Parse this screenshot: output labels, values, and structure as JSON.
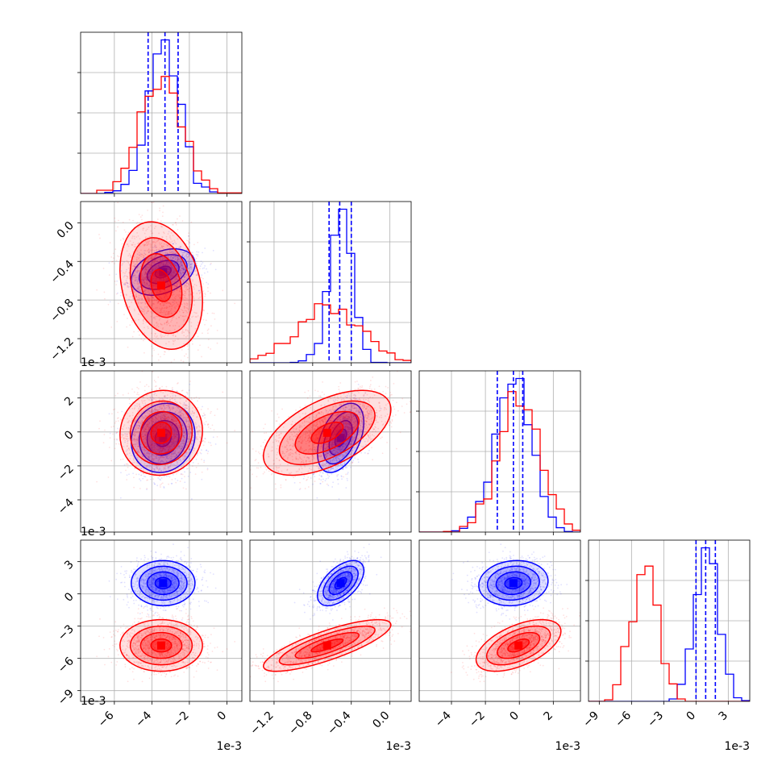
{
  "chart_data": {
    "type": "corner",
    "parameters": [
      {
        "id": "p1",
        "range": [
          -0.0078,
          0.0008
        ],
        "offset_text": "1e-3",
        "ticks": [
          -0.006,
          -0.004,
          -0.002,
          0.0
        ],
        "tick_labels": [
          "−6",
          "−4",
          "−2",
          "0"
        ]
      },
      {
        "id": "p2",
        "range": [
          -0.00145,
          0.00022
        ],
        "offset_text": "1e-3",
        "ticks": [
          -0.0012,
          -0.0008,
          -0.0004,
          0.0
        ],
        "tick_labels": [
          "−1.2",
          "−0.8",
          "−0.4",
          "0.0"
        ]
      },
      {
        "id": "p3",
        "range": [
          -0.0059,
          0.0036
        ],
        "offset_text": "1e-3",
        "ticks": [
          -0.004,
          -0.002,
          0.0,
          0.002
        ],
        "tick_labels": [
          "−4",
          "−2",
          "0",
          "2"
        ]
      },
      {
        "id": "p4",
        "range": [
          -0.01,
          0.005
        ],
        "offset_text": "1e-3",
        "ticks": [
          -0.009,
          -0.006,
          -0.003,
          0.0,
          0.003
        ],
        "tick_labels": [
          "−9",
          "−6",
          "−3",
          "0",
          "3"
        ]
      }
    ],
    "series": [
      {
        "color": "#0000ff",
        "means": [
          -0.0034,
          -0.00051,
          -0.00035,
          0.001
        ],
        "stds": [
          0.00085,
          0.00012,
          0.00102,
          0.00105
        ],
        "quantiles": [
          [
            -0.0042,
            -0.0033,
            -0.0026
          ],
          [
            -0.00063,
            -0.00052,
            -0.0004
          ],
          [
            -0.0013,
            -0.00035,
            0.0002
          ],
          [
            0.0,
            0.0009,
            0.0018
          ]
        ]
      },
      {
        "color": "#ff0000",
        "means": [
          -0.0035,
          -0.00065,
          -5e-05,
          -0.0048
        ],
        "stds": [
          0.0011,
          0.00033,
          0.00125,
          0.0012
        ],
        "quantiles": []
      }
    ],
    "grid": true,
    "contour_levels_sigma": [
      0.5,
      1.0,
      1.5,
      2.0
    ]
  }
}
